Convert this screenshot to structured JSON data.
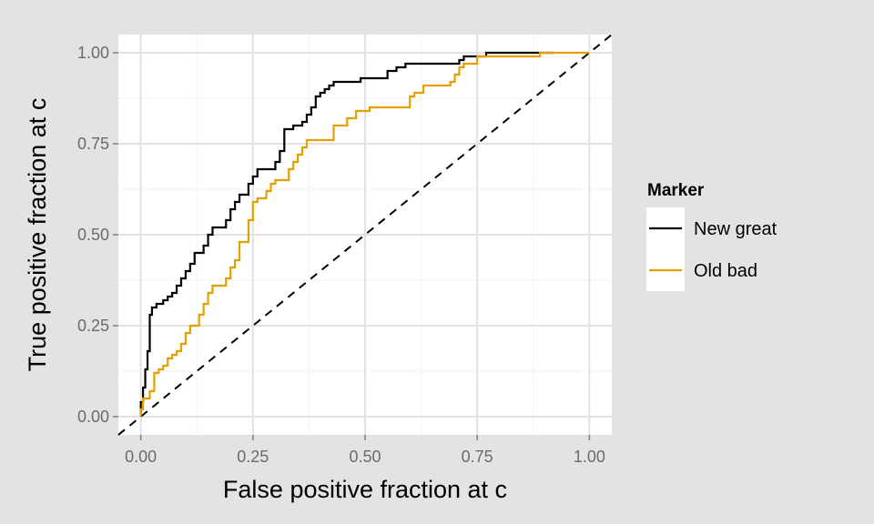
{
  "chart_data": {
    "type": "line",
    "xlabel": "False positive fraction at c",
    "ylabel": "True positive fraction at c",
    "xlim": [
      -0.05,
      1.05
    ],
    "ylim": [
      -0.05,
      1.05
    ],
    "x_ticks": [
      "0.00",
      "0.25",
      "0.50",
      "0.75",
      "1.00"
    ],
    "y_ticks": [
      "0.00",
      "0.25",
      "0.50",
      "0.75",
      "1.00"
    ],
    "grid": true,
    "legend": {
      "title": "Marker",
      "placement": "right"
    },
    "reference_line": {
      "style": "dashed",
      "points": [
        [
          -0.05,
          -0.05
        ],
        [
          1.05,
          1.05
        ]
      ]
    },
    "series": [
      {
        "name": "New great",
        "color": "#000000",
        "points": [
          [
            0,
            0
          ],
          [
            0,
            0.04
          ],
          [
            0.005,
            0.04
          ],
          [
            0.005,
            0.08
          ],
          [
            0.01,
            0.08
          ],
          [
            0.01,
            0.13
          ],
          [
            0.015,
            0.13
          ],
          [
            0.015,
            0.18
          ],
          [
            0.02,
            0.18
          ],
          [
            0.02,
            0.28
          ],
          [
            0.025,
            0.28
          ],
          [
            0.025,
            0.3
          ],
          [
            0.035,
            0.3
          ],
          [
            0.035,
            0.31
          ],
          [
            0.05,
            0.31
          ],
          [
            0.05,
            0.32
          ],
          [
            0.06,
            0.32
          ],
          [
            0.06,
            0.33
          ],
          [
            0.07,
            0.33
          ],
          [
            0.07,
            0.34
          ],
          [
            0.08,
            0.34
          ],
          [
            0.08,
            0.36
          ],
          [
            0.09,
            0.36
          ],
          [
            0.09,
            0.38
          ],
          [
            0.1,
            0.38
          ],
          [
            0.1,
            0.4
          ],
          [
            0.11,
            0.4
          ],
          [
            0.11,
            0.42
          ],
          [
            0.12,
            0.42
          ],
          [
            0.12,
            0.45
          ],
          [
            0.14,
            0.45
          ],
          [
            0.14,
            0.47
          ],
          [
            0.15,
            0.47
          ],
          [
            0.15,
            0.5
          ],
          [
            0.16,
            0.5
          ],
          [
            0.16,
            0.52
          ],
          [
            0.19,
            0.52
          ],
          [
            0.19,
            0.54
          ],
          [
            0.2,
            0.54
          ],
          [
            0.2,
            0.57
          ],
          [
            0.21,
            0.57
          ],
          [
            0.21,
            0.59
          ],
          [
            0.22,
            0.59
          ],
          [
            0.22,
            0.61
          ],
          [
            0.24,
            0.61
          ],
          [
            0.24,
            0.64
          ],
          [
            0.25,
            0.64
          ],
          [
            0.25,
            0.66
          ],
          [
            0.26,
            0.66
          ],
          [
            0.26,
            0.68
          ],
          [
            0.3,
            0.68
          ],
          [
            0.3,
            0.7
          ],
          [
            0.31,
            0.7
          ],
          [
            0.31,
            0.73
          ],
          [
            0.32,
            0.73
          ],
          [
            0.32,
            0.79
          ],
          [
            0.34,
            0.79
          ],
          [
            0.34,
            0.8
          ],
          [
            0.36,
            0.8
          ],
          [
            0.36,
            0.81
          ],
          [
            0.37,
            0.81
          ],
          [
            0.37,
            0.83
          ],
          [
            0.38,
            0.83
          ],
          [
            0.38,
            0.85
          ],
          [
            0.39,
            0.85
          ],
          [
            0.39,
            0.88
          ],
          [
            0.4,
            0.88
          ],
          [
            0.4,
            0.89
          ],
          [
            0.41,
            0.89
          ],
          [
            0.41,
            0.9
          ],
          [
            0.42,
            0.9
          ],
          [
            0.42,
            0.91
          ],
          [
            0.43,
            0.91
          ],
          [
            0.43,
            0.92
          ],
          [
            0.49,
            0.92
          ],
          [
            0.49,
            0.93
          ],
          [
            0.55,
            0.93
          ],
          [
            0.55,
            0.95
          ],
          [
            0.57,
            0.95
          ],
          [
            0.57,
            0.96
          ],
          [
            0.59,
            0.96
          ],
          [
            0.59,
            0.97
          ],
          [
            0.71,
            0.97
          ],
          [
            0.71,
            0.98
          ],
          [
            0.72,
            0.98
          ],
          [
            0.72,
            0.99
          ],
          [
            0.77,
            0.99
          ],
          [
            0.77,
            1
          ],
          [
            0.92,
            1
          ]
        ]
      },
      {
        "name": "Old bad",
        "color": "#E69F00",
        "points": [
          [
            0,
            0
          ],
          [
            0,
            0.02
          ],
          [
            0.005,
            0.02
          ],
          [
            0.005,
            0.05
          ],
          [
            0.02,
            0.05
          ],
          [
            0.02,
            0.07
          ],
          [
            0.03,
            0.07
          ],
          [
            0.03,
            0.12
          ],
          [
            0.04,
            0.12
          ],
          [
            0.04,
            0.13
          ],
          [
            0.05,
            0.13
          ],
          [
            0.05,
            0.14
          ],
          [
            0.06,
            0.14
          ],
          [
            0.06,
            0.16
          ],
          [
            0.07,
            0.16
          ],
          [
            0.07,
            0.17
          ],
          [
            0.08,
            0.17
          ],
          [
            0.08,
            0.18
          ],
          [
            0.09,
            0.18
          ],
          [
            0.09,
            0.2
          ],
          [
            0.1,
            0.2
          ],
          [
            0.1,
            0.23
          ],
          [
            0.11,
            0.23
          ],
          [
            0.11,
            0.25
          ],
          [
            0.13,
            0.25
          ],
          [
            0.13,
            0.28
          ],
          [
            0.14,
            0.28
          ],
          [
            0.14,
            0.31
          ],
          [
            0.15,
            0.31
          ],
          [
            0.15,
            0.34
          ],
          [
            0.16,
            0.34
          ],
          [
            0.16,
            0.36
          ],
          [
            0.19,
            0.36
          ],
          [
            0.19,
            0.38
          ],
          [
            0.2,
            0.38
          ],
          [
            0.2,
            0.41
          ],
          [
            0.21,
            0.41
          ],
          [
            0.21,
            0.43
          ],
          [
            0.22,
            0.43
          ],
          [
            0.22,
            0.48
          ],
          [
            0.24,
            0.48
          ],
          [
            0.24,
            0.54
          ],
          [
            0.25,
            0.54
          ],
          [
            0.25,
            0.59
          ],
          [
            0.26,
            0.59
          ],
          [
            0.26,
            0.6
          ],
          [
            0.28,
            0.6
          ],
          [
            0.28,
            0.62
          ],
          [
            0.29,
            0.62
          ],
          [
            0.29,
            0.64
          ],
          [
            0.3,
            0.64
          ],
          [
            0.3,
            0.65
          ],
          [
            0.33,
            0.65
          ],
          [
            0.33,
            0.68
          ],
          [
            0.34,
            0.68
          ],
          [
            0.34,
            0.7
          ],
          [
            0.35,
            0.7
          ],
          [
            0.35,
            0.72
          ],
          [
            0.36,
            0.72
          ],
          [
            0.36,
            0.74
          ],
          [
            0.37,
            0.74
          ],
          [
            0.37,
            0.76
          ],
          [
            0.43,
            0.76
          ],
          [
            0.43,
            0.8
          ],
          [
            0.46,
            0.8
          ],
          [
            0.46,
            0.82
          ],
          [
            0.48,
            0.82
          ],
          [
            0.48,
            0.84
          ],
          [
            0.51,
            0.84
          ],
          [
            0.51,
            0.85
          ],
          [
            0.6,
            0.85
          ],
          [
            0.6,
            0.88
          ],
          [
            0.61,
            0.88
          ],
          [
            0.61,
            0.89
          ],
          [
            0.63,
            0.89
          ],
          [
            0.63,
            0.91
          ],
          [
            0.69,
            0.91
          ],
          [
            0.69,
            0.92
          ],
          [
            0.7,
            0.92
          ],
          [
            0.7,
            0.94
          ],
          [
            0.71,
            0.94
          ],
          [
            0.71,
            0.96
          ],
          [
            0.72,
            0.96
          ],
          [
            0.72,
            0.97
          ],
          [
            0.75,
            0.97
          ],
          [
            0.75,
            0.99
          ],
          [
            0.89,
            0.99
          ],
          [
            0.89,
            1
          ],
          [
            1,
            1
          ]
        ]
      }
    ]
  }
}
